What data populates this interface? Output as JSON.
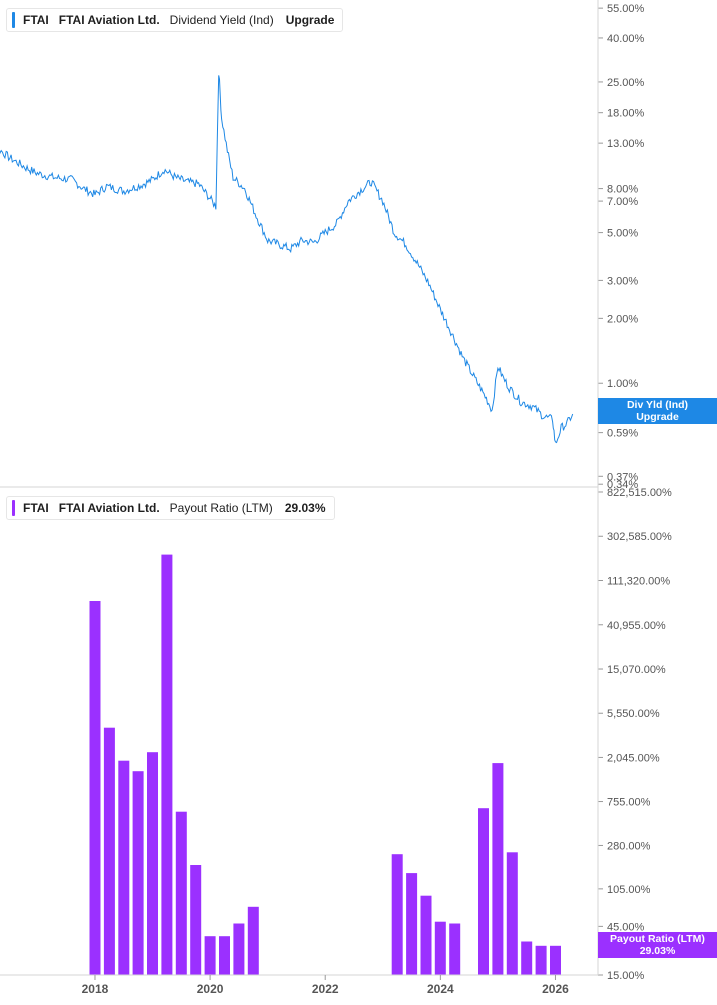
{
  "colors": {
    "yield_line": "#1e88e5",
    "payout_bar": "#9b30ff",
    "axis_text": "#555555",
    "divider": "#d6d6d6"
  },
  "top_legend": {
    "ticker": "FTAI",
    "company": "FTAI Aviation Ltd.",
    "metric": "Dividend Yield (Ind)",
    "value": "Upgrade"
  },
  "bottom_legend": {
    "ticker": "FTAI",
    "company": "FTAI Aviation Ltd.",
    "metric": "Payout Ratio (LTM)",
    "value": "29.03%"
  },
  "top_tag": {
    "line1": "Div Yld (Ind)",
    "line2": "Upgrade"
  },
  "bottom_tag": {
    "line1": "Payout Ratio (LTM)",
    "line2": "29.03%"
  },
  "chart_data": [
    {
      "type": "line",
      "scale": "log",
      "yticks": [
        "55.00%",
        "40.00%",
        "25.00%",
        "18.00%",
        "13.00%",
        "8.00%",
        "7.00%",
        "5.00%",
        "3.00%",
        "2.00%",
        "1.00%",
        "0.59%",
        "0.37%",
        "0.34%"
      ],
      "ytick_values": [
        55,
        40,
        25,
        18,
        13,
        8,
        7,
        5,
        3,
        2,
        1,
        0.59,
        0.37,
        0.34
      ],
      "ylim": [
        0.33,
        60
      ],
      "series": [
        {
          "x": [
            2016.0,
            2016.2,
            2016.5,
            2016.8,
            2017.0,
            2017.3,
            2017.6,
            2017.8,
            2018.0,
            2018.2,
            2018.5,
            2018.8,
            2019.0,
            2019.2,
            2019.4,
            2019.6,
            2019.8,
            2020.0,
            2020.1,
            2020.15,
            2020.2,
            2020.3,
            2020.4,
            2020.6,
            2020.8,
            2021.0,
            2021.2,
            2021.4,
            2021.6,
            2021.8,
            2022.0,
            2022.2,
            2022.4,
            2022.6,
            2022.8,
            2023.0,
            2023.2,
            2023.4,
            2023.6,
            2023.8,
            2024.0,
            2024.2,
            2024.4,
            2024.6,
            2024.8,
            2024.9,
            2025.0,
            2025.1,
            2025.2,
            2025.4,
            2025.6,
            2025.8,
            2025.95,
            2026.0,
            2026.1,
            2026.2,
            2026.3
          ],
          "y": [
            14.5,
            13.0,
            11.2,
            10.0,
            9.4,
            9.0,
            8.8,
            8.0,
            7.5,
            8.2,
            7.8,
            8.3,
            8.8,
            9.8,
            9.0,
            8.6,
            8.4,
            7.2,
            6.6,
            28.0,
            17.0,
            12.0,
            9.0,
            8.0,
            6.0,
            4.6,
            4.4,
            4.2,
            4.6,
            4.5,
            5.0,
            5.5,
            7.0,
            7.8,
            8.6,
            7.0,
            5.0,
            4.4,
            3.6,
            2.9,
            2.2,
            1.7,
            1.3,
            1.05,
            0.85,
            0.75,
            1.2,
            1.05,
            0.95,
            0.82,
            0.78,
            0.7,
            0.68,
            0.52,
            0.62,
            0.65,
            0.72
          ]
        }
      ]
    },
    {
      "type": "bar",
      "scale": "log",
      "yticks": [
        "822,515.00%",
        "302,585.00%",
        "111,320.00%",
        "40,955.00%",
        "15,070.00%",
        "5,550.00%",
        "2,045.00%",
        "755.00%",
        "280.00%",
        "105.00%",
        "45.00%",
        "15.00%"
      ],
      "ytick_values": [
        822515,
        302585,
        111320,
        40955,
        15070,
        5550,
        2045,
        755,
        280,
        105,
        45,
        15
      ],
      "ylim": [
        15,
        900000
      ],
      "xticks": [
        "2018",
        "2020",
        "2022",
        "2024",
        "2026"
      ],
      "xtick_values": [
        2018,
        2020,
        2022,
        2024,
        2026
      ],
      "xlim": [
        2016.35,
        2026.6
      ],
      "series": [
        {
          "x": [
            2018.0,
            2018.25,
            2018.5,
            2018.75,
            2019.0,
            2019.25,
            2019.5,
            2019.75,
            2020.0,
            2020.25,
            2020.5,
            2020.75,
            2023.25,
            2023.5,
            2023.75,
            2024.0,
            2024.25,
            2024.75,
            2025.0,
            2025.25,
            2025.5,
            2025.75,
            2026.0
          ],
          "y": [
            70000,
            4000,
            1900,
            1500,
            2300,
            200000,
            600,
            180,
            36,
            36,
            48,
            70,
            230,
            150,
            90,
            50,
            48,
            650,
            1800,
            240,
            32,
            29,
            29.03
          ]
        }
      ]
    }
  ]
}
